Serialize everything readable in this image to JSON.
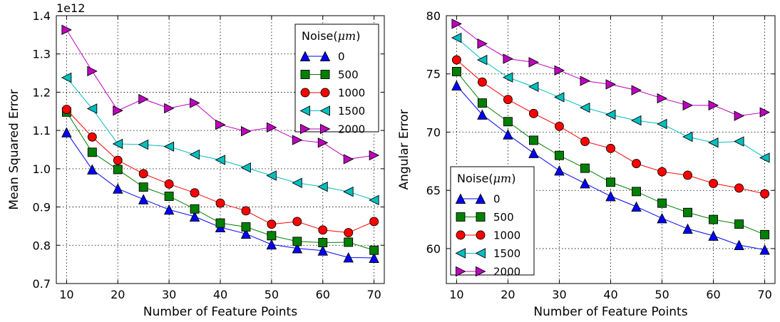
{
  "legend_title": "Noise(",
  "legend_unit": "μm",
  "legend_close": ")",
  "chart_data": [
    {
      "type": "line",
      "xlabel": "Number of Feature Points",
      "ylabel": "Mean Squared Error",
      "offset_text": "1e12",
      "xlim": [
        8,
        72
      ],
      "ylim": [
        0.7,
        1.4
      ],
      "xticks": [
        10,
        20,
        30,
        40,
        50,
        60,
        70
      ],
      "xtick_labels": [
        "10",
        "20",
        "30",
        "40",
        "50",
        "60",
        "70"
      ],
      "yticks": [
        0.7,
        0.8,
        0.9,
        1.0,
        1.1,
        1.2,
        1.3,
        1.4
      ],
      "ytick_labels": [
        "0.7",
        "0.8",
        "0.9",
        "1.0",
        "1.1",
        "1.2",
        "1.3",
        "1.4"
      ],
      "grid": true,
      "legend_position": "top-right",
      "x": [
        10,
        15,
        20,
        25,
        30,
        35,
        40,
        45,
        50,
        55,
        60,
        65,
        70
      ],
      "series": [
        {
          "name": "0",
          "color": "#0000ff",
          "marker": "triangle-up",
          "values": [
            1.095,
            0.998,
            0.948,
            0.92,
            0.893,
            0.875,
            0.847,
            0.83,
            0.802,
            0.792,
            0.786,
            0.768,
            0.767
          ]
        },
        {
          "name": "500",
          "color": "#008000",
          "marker": "square",
          "values": [
            1.148,
            1.043,
            0.998,
            0.952,
            0.928,
            0.895,
            0.858,
            0.848,
            0.825,
            0.81,
            0.807,
            0.808,
            0.787
          ]
        },
        {
          "name": "1000",
          "color": "#ff0000",
          "marker": "circle",
          "values": [
            1.155,
            1.083,
            1.022,
            0.987,
            0.96,
            0.937,
            0.91,
            0.89,
            0.855,
            0.862,
            0.84,
            0.833,
            0.862
          ]
        },
        {
          "name": "1500",
          "color": "#00bfbf",
          "marker": "triangle-left",
          "values": [
            1.238,
            1.157,
            1.065,
            1.063,
            1.058,
            1.037,
            1.023,
            1.003,
            0.982,
            0.963,
            0.953,
            0.94,
            0.918
          ]
        },
        {
          "name": "2000",
          "color": "#bf00bf",
          "marker": "triangle-right",
          "values": [
            1.363,
            1.255,
            1.152,
            1.182,
            1.158,
            1.172,
            1.115,
            1.098,
            1.108,
            1.075,
            1.068,
            1.025,
            1.035
          ]
        }
      ]
    },
    {
      "type": "line",
      "xlabel": "Number of Feature Points",
      "ylabel": "Angular Error",
      "xlim": [
        8,
        72
      ],
      "ylim": [
        57,
        80
      ],
      "xticks": [
        10,
        20,
        30,
        40,
        50,
        60,
        70
      ],
      "xtick_labels": [
        "10",
        "20",
        "30",
        "40",
        "50",
        "60",
        "70"
      ],
      "yticks": [
        60,
        65,
        70,
        75,
        80
      ],
      "ytick_labels": [
        "60",
        "65",
        "70",
        "75",
        "80"
      ],
      "grid": true,
      "legend_position": "bottom-left",
      "x": [
        10,
        15,
        20,
        25,
        30,
        35,
        40,
        45,
        50,
        55,
        60,
        65,
        70
      ],
      "series": [
        {
          "name": "0",
          "color": "#0000ff",
          "marker": "triangle-up",
          "values": [
            74.0,
            71.5,
            69.8,
            68.2,
            66.7,
            65.6,
            64.5,
            63.6,
            62.6,
            61.7,
            61.1,
            60.3,
            59.9
          ]
        },
        {
          "name": "500",
          "color": "#008000",
          "marker": "square",
          "values": [
            75.2,
            72.5,
            70.9,
            69.3,
            68.0,
            66.9,
            65.7,
            64.9,
            63.9,
            63.1,
            62.5,
            62.1,
            61.2
          ]
        },
        {
          "name": "1000",
          "color": "#ff0000",
          "marker": "circle",
          "values": [
            76.2,
            74.3,
            72.8,
            71.6,
            70.5,
            69.2,
            68.6,
            67.3,
            66.6,
            66.3,
            65.6,
            65.2,
            64.7
          ]
        },
        {
          "name": "1500",
          "color": "#00bfbf",
          "marker": "triangle-left",
          "values": [
            78.1,
            76.2,
            74.7,
            73.9,
            73.0,
            72.1,
            71.5,
            71.0,
            70.7,
            69.6,
            69.1,
            69.2,
            67.8
          ]
        },
        {
          "name": "2000",
          "color": "#bf00bf",
          "marker": "triangle-right",
          "values": [
            79.3,
            77.6,
            76.3,
            76.0,
            75.3,
            74.4,
            74.1,
            73.6,
            72.9,
            72.3,
            72.3,
            71.4,
            71.7
          ]
        }
      ]
    }
  ]
}
